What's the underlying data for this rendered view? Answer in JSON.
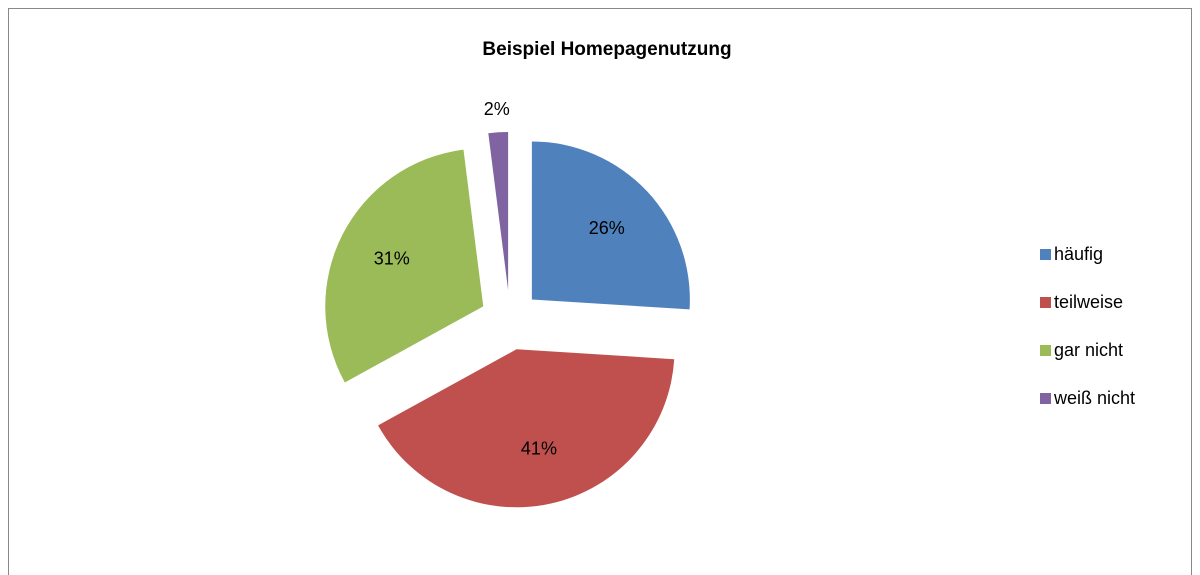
{
  "chart_data": {
    "type": "pie",
    "title": "Beispiel Homepagenutzung",
    "categories": [
      "häufig",
      "teilweise",
      "gar nicht",
      "weiß nicht"
    ],
    "values": [
      26,
      41,
      31,
      2
    ],
    "value_labels": [
      "26%",
      "41%",
      "31%",
      "2%"
    ],
    "colors": [
      "#4f81bd",
      "#c0504d",
      "#9bbb59",
      "#8064a2"
    ],
    "legend": "right"
  }
}
